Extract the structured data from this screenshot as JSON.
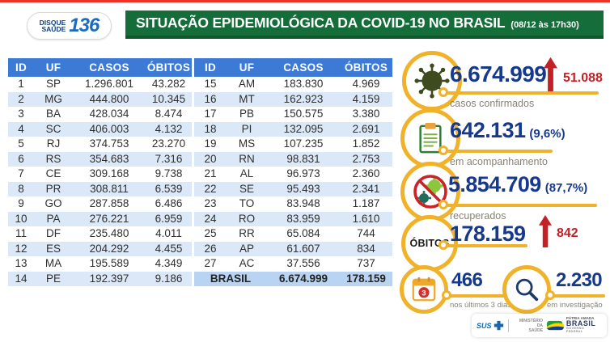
{
  "header": {
    "logo_line1": "DISQUE",
    "logo_line2": "SAÚDE",
    "logo_number": "136",
    "title": "SITUAÇÃO EPIDEMIOLÓGICA DA COVID-19 NO BRASIL",
    "timestamp": "(08/12 às 17h30)"
  },
  "table": {
    "columns": [
      "ID",
      "UF",
      "CASOS",
      "ÓBITOS"
    ],
    "left_rows": [
      [
        "1",
        "SP",
        "1.296.801",
        "43.282"
      ],
      [
        "2",
        "MG",
        "444.800",
        "10.345"
      ],
      [
        "3",
        "BA",
        "428.034",
        "8.474"
      ],
      [
        "4",
        "SC",
        "406.003",
        "4.132"
      ],
      [
        "5",
        "RJ",
        "374.753",
        "23.270"
      ],
      [
        "6",
        "RS",
        "354.683",
        "7.316"
      ],
      [
        "7",
        "CE",
        "309.168",
        "9.738"
      ],
      [
        "8",
        "PR",
        "308.811",
        "6.539"
      ],
      [
        "9",
        "GO",
        "287.858",
        "6.486"
      ],
      [
        "10",
        "PA",
        "276.221",
        "6.959"
      ],
      [
        "11",
        "DF",
        "235.480",
        "4.011"
      ],
      [
        "12",
        "ES",
        "204.292",
        "4.455"
      ],
      [
        "13",
        "MA",
        "195.589",
        "4.349"
      ],
      [
        "14",
        "PE",
        "192.397",
        "9.186"
      ]
    ],
    "right_rows": [
      [
        "15",
        "AM",
        "183.830",
        "4.969"
      ],
      [
        "16",
        "MT",
        "162.923",
        "4.159"
      ],
      [
        "17",
        "PB",
        "150.575",
        "3.380"
      ],
      [
        "18",
        "PI",
        "132.095",
        "2.691"
      ],
      [
        "19",
        "MS",
        "107.235",
        "1.852"
      ],
      [
        "20",
        "RN",
        "98.831",
        "2.753"
      ],
      [
        "21",
        "AL",
        "96.973",
        "2.360"
      ],
      [
        "22",
        "SE",
        "95.493",
        "2.341"
      ],
      [
        "23",
        "TO",
        "83.948",
        "1.187"
      ],
      [
        "24",
        "RO",
        "83.959",
        "1.610"
      ],
      [
        "25",
        "RR",
        "65.084",
        "744"
      ],
      [
        "26",
        "AP",
        "61.607",
        "834"
      ],
      [
        "27",
        "AC",
        "37.556",
        "737"
      ]
    ],
    "total": {
      "label": "BRASIL",
      "casos": "6.674.999",
      "obitos": "178.159"
    }
  },
  "stats": {
    "confirmed": {
      "value": "6.674.999",
      "delta": "51.088",
      "label": "casos confirmados"
    },
    "monitoring": {
      "value": "642.131",
      "percent": "(9,6%)",
      "label": "em acompanhamento"
    },
    "recovered": {
      "value": "5.854.709",
      "percent": "(87,7%)",
      "label": "recuperados"
    },
    "deaths": {
      "circle_label": "ÓBITOS",
      "value": "178.159",
      "delta": "842"
    },
    "recent_deaths": {
      "badge": "3",
      "value": "466",
      "label": "nos últimos 3 dias"
    },
    "investigation": {
      "value": "2.230",
      "label": "em investigação"
    }
  },
  "footer": {
    "sus": "SUS",
    "ministry_line1": "MINISTÉRIO DA",
    "ministry_line2": "SAÚDE",
    "patria": "PÁTRIA AMADA",
    "brasil": "BRASIL",
    "governo": "GOVERNO FEDERAL"
  },
  "colors": {
    "header_green": "#156e3a",
    "table_header_blue": "#3c7ad6",
    "stripe_blue": "#dbe8f7",
    "total_row_blue": "#b9d3f2",
    "number_blue": "#16398c",
    "alert_red": "#c42127",
    "ring_yellow": "#f0b22a",
    "label_gray": "#8a8374"
  },
  "chart_data": {
    "type": "table",
    "title": "SITUAÇÃO EPIDEMIOLÓGICA DA COVID-19 NO BRASIL (08/12 às 17h30)",
    "columns": [
      "ID",
      "UF",
      "CASOS",
      "ÓBITOS"
    ],
    "rows": [
      [
        1,
        "SP",
        1296801,
        43282
      ],
      [
        2,
        "MG",
        444800,
        10345
      ],
      [
        3,
        "BA",
        428034,
        8474
      ],
      [
        4,
        "SC",
        406003,
        4132
      ],
      [
        5,
        "RJ",
        374753,
        23270
      ],
      [
        6,
        "RS",
        354683,
        7316
      ],
      [
        7,
        "CE",
        309168,
        9738
      ],
      [
        8,
        "PR",
        308811,
        6539
      ],
      [
        9,
        "GO",
        287858,
        6486
      ],
      [
        10,
        "PA",
        276221,
        6959
      ],
      [
        11,
        "DF",
        235480,
        4011
      ],
      [
        12,
        "ES",
        204292,
        4455
      ],
      [
        13,
        "MA",
        195589,
        4349
      ],
      [
        14,
        "PE",
        192397,
        9186
      ],
      [
        15,
        "AM",
        183830,
        4969
      ],
      [
        16,
        "MT",
        162923,
        4159
      ],
      [
        17,
        "PB",
        150575,
        3380
      ],
      [
        18,
        "PI",
        132095,
        2691
      ],
      [
        19,
        "MS",
        107235,
        1852
      ],
      [
        20,
        "RN",
        98831,
        2753
      ],
      [
        21,
        "AL",
        96973,
        2360
      ],
      [
        22,
        "SE",
        95493,
        2341
      ],
      [
        23,
        "TO",
        83948,
        1187
      ],
      [
        24,
        "RO",
        83959,
        1610
      ],
      [
        25,
        "RR",
        65084,
        744
      ],
      [
        26,
        "AP",
        61607,
        834
      ],
      [
        27,
        "AC",
        37556,
        737
      ]
    ],
    "total": {
      "uf": "BRASIL",
      "casos": 6674999,
      "obitos": 178159
    },
    "summary": {
      "casos_confirmados": 6674999,
      "novos_casos": 51088,
      "em_acompanhamento": 642131,
      "em_acompanhamento_pct": "9,6%",
      "recuperados": 5854709,
      "recuperados_pct": "87,7%",
      "obitos": 178159,
      "novos_obitos": 842,
      "obitos_ultimos_3_dias": 466,
      "obitos_em_investigacao": 2230
    }
  }
}
